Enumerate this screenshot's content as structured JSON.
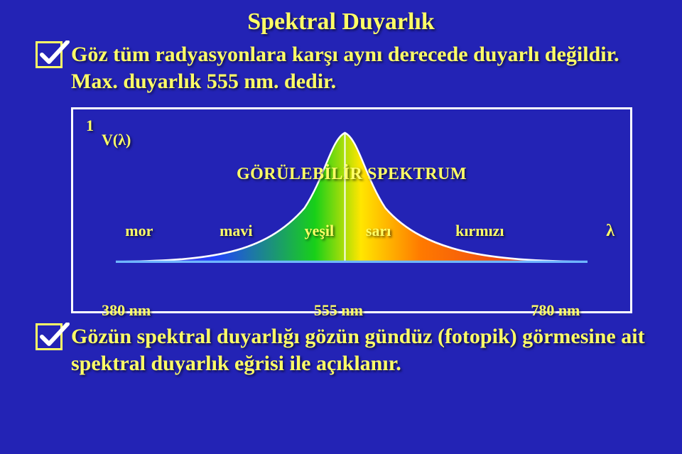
{
  "slide": {
    "background_color": "#2323b5",
    "text_color": "#ffff66",
    "frame_border_color": "#ffffff",
    "title": "Spektral Duyarlık",
    "bullet1": "Göz tüm radyasyonlara karşı aynı derecede duyarlı değildir. Max. duyarlık 555 nm. dedir.",
    "bullet2": "Gözün spektral duyarlığı gözün gündüz (fotopik) görmesine ait spektral duyarlık eğrisi ile açıklanır."
  },
  "checkbox": {
    "border_color": "#ffff66",
    "check_color": "#ffffff"
  },
  "diagram": {
    "axis_one": "1",
    "vlambda": "V(λ)",
    "spectrum_title": "GÖRÜLEBİLİR SPEKTRUM",
    "lambda_symbol": "λ",
    "baseline_color": "#6fb6ff",
    "peak_line_color": "#ffffff",
    "curve_stroke": "#ffffff",
    "colors": {
      "violet": "#6a2db3",
      "blue": "#2040ff",
      "green": "#18d018",
      "yellow": "#ffe600",
      "orange": "#ff7a00",
      "red": "#e02020"
    },
    "color_labels": {
      "mor_label": "mor",
      "mavi_label": "mavi",
      "yesil_label": "yeşil",
      "sari_label": "sarı",
      "kirmizi_label": "kırmızı",
      "mor_pct": 2,
      "mavi_pct": 22,
      "yesil_pct": 40,
      "sari_pct": 53,
      "kirmizi_pct": 72
    },
    "nm_labels": {
      "n380": "380 nm",
      "n555": "555 nm",
      "n780": "780 nm",
      "p380_pct": -3,
      "p555_pct": 42,
      "p780_pct": 88
    }
  }
}
